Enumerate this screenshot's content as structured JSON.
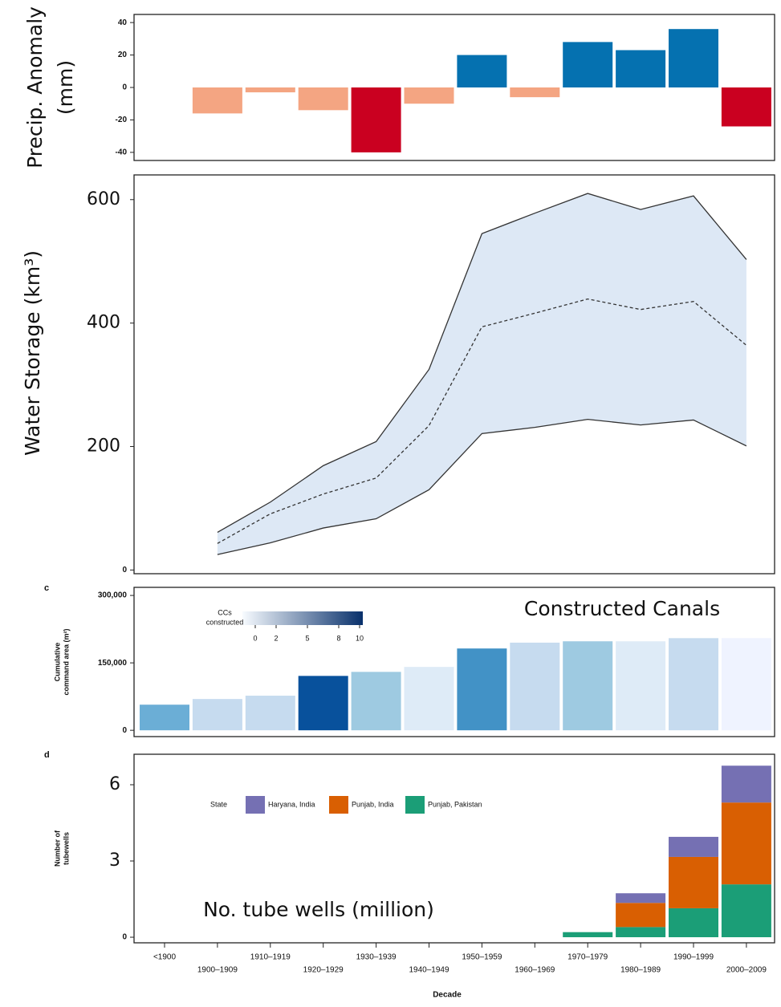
{
  "chart_data": [
    {
      "type": "bar",
      "ylabel": [
        "Precip. Anomaly",
        "(mm)"
      ],
      "values": [
        null,
        -16,
        -3,
        -14,
        -40,
        -10,
        20,
        -6,
        28,
        23,
        36,
        -24
      ],
      "colors": [
        null,
        "#f4a582",
        "#f4a582",
        "#f4a582",
        "#ca0020",
        "#f4a582",
        "#0571b0",
        "#f4a582",
        "#0571b0",
        "#0571b0",
        "#0571b0",
        "#ca0020"
      ],
      "ylim": [
        -45,
        45
      ],
      "yticks": [
        40,
        20,
        0,
        -20,
        -40
      ]
    },
    {
      "type": "band",
      "ylabel": [
        "Water Storage (km³)"
      ],
      "band_color": "#dde8f5",
      "series": [
        {
          "color": "#333333",
          "dashed": false,
          "values": [
            null,
            61,
            110,
            169,
            208,
            325,
            545,
            578,
            610,
            584,
            606,
            503
          ]
        },
        {
          "color": "#333333",
          "dashed": true,
          "values": [
            null,
            43,
            91,
            123,
            149,
            234,
            394,
            416,
            439,
            422,
            435,
            364
          ]
        },
        {
          "color": "#333333",
          "dashed": false,
          "values": [
            null,
            25,
            44,
            68,
            83,
            130,
            221,
            231,
            244,
            235,
            243,
            201
          ]
        }
      ],
      "ylim": [
        -6,
        640
      ],
      "yticks": [
        0,
        200,
        400,
        600
      ]
    },
    {
      "type": "bar",
      "panel_label": "c",
      "ylabel": [
        "Cumulative",
        "command area (m²)"
      ],
      "annotation": "Constructed Canals",
      "values": [
        57000,
        69600,
        77000,
        121000,
        130000,
        141000,
        182000,
        195000,
        198000,
        198000,
        205000,
        205000
      ],
      "colors": [
        "#6baed6",
        "#c6dbef",
        "#c6dbef",
        "#08519c",
        "#9ecae1",
        "#deebf7",
        "#4292c6",
        "#c6dbef",
        "#9ecae1",
        "#deebf7",
        "#c6dbef",
        "#eff3ff"
      ],
      "ylim": [
        -14000,
        318000
      ],
      "yticks": [
        {
          "value": 300000,
          "label": "300,000"
        },
        {
          "value": 150000,
          "label": "150,000"
        },
        0
      ],
      "colorbar": {
        "title": [
          "CCs",
          "constructed"
        ],
        "range": [
          0,
          10
        ],
        "ticks": [
          0,
          2,
          5,
          8,
          10
        ],
        "colors": [
          "#f7fbff",
          "#08306b"
        ]
      }
    },
    {
      "type": "stacked_bar",
      "panel_label": "d",
      "ylabel": [
        "Number of",
        "tubewells"
      ],
      "annotation": "No. tube wells (million)",
      "xlabel": "Decade",
      "legend_title": "State",
      "categories": [
        "<1900",
        "1900–1909",
        "1910–1919",
        "1920–1929",
        "1930–1939",
        "1940–1949",
        "1950–1959",
        "1960–1969",
        "1970–1979",
        "1980–1989",
        "1990–1999",
        "2000–2009"
      ],
      "series": [
        {
          "name": "Punjab, Pakistan",
          "color": "#1b9e77",
          "values": [
            null,
            null,
            null,
            null,
            null,
            null,
            null,
            null,
            0.2,
            0.4,
            1.14,
            2.08
          ]
        },
        {
          "name": "Punjab, India",
          "color": "#d95f02",
          "values": [
            null,
            null,
            null,
            null,
            null,
            null,
            null,
            null,
            null,
            0.95,
            2.02,
            3.22
          ]
        },
        {
          "name": "Haryana, India",
          "color": "#7570b3",
          "values": [
            null,
            null,
            null,
            null,
            null,
            null,
            null,
            null,
            null,
            0.38,
            0.79,
            1.45
          ]
        }
      ],
      "ylim": [
        -0.22,
        7.2
      ],
      "yticks": [
        6,
        3,
        0
      ]
    }
  ]
}
